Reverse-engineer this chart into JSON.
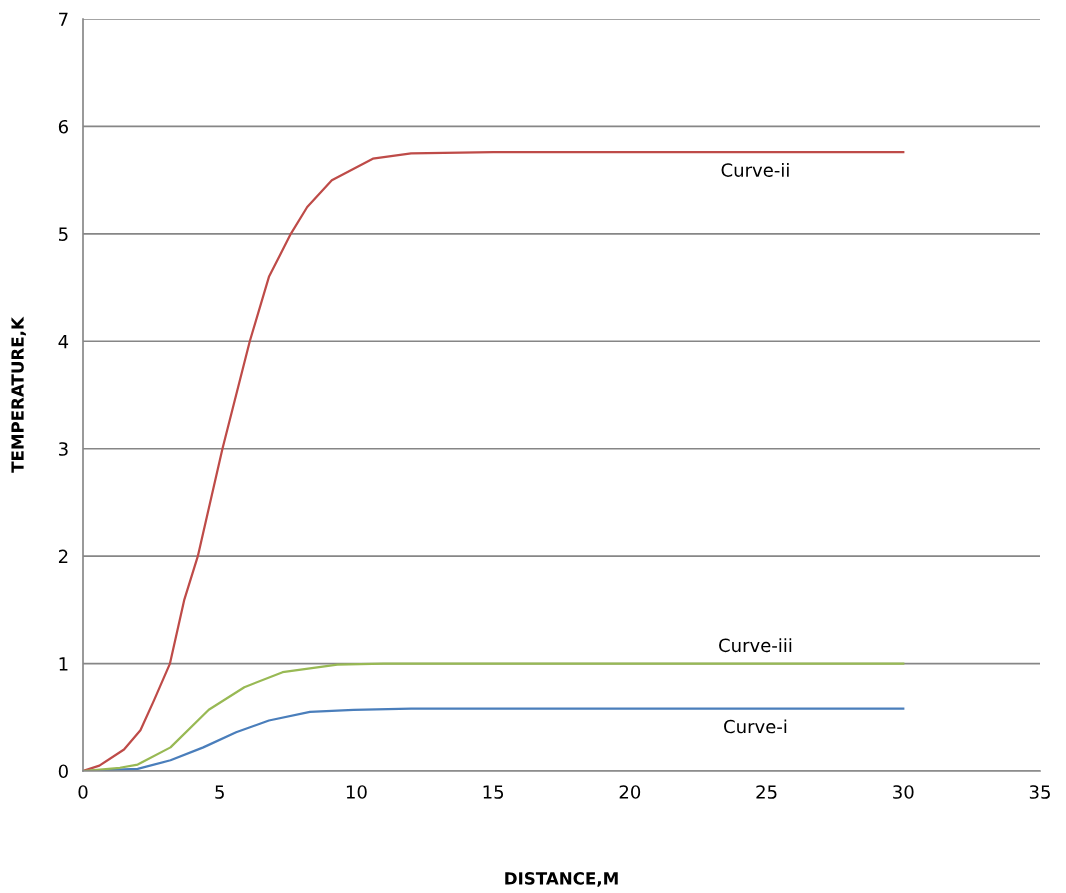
{
  "chart_data": {
    "type": "line",
    "xlabel": "DISTANCE,M",
    "ylabel": "TEMPERATURE,K",
    "xlim": [
      0,
      35
    ],
    "xticks": [
      0,
      5,
      10,
      15,
      20,
      25,
      30,
      35
    ],
    "ylim": [
      0,
      7
    ],
    "yticks": [
      0,
      1,
      2,
      3,
      4,
      5,
      6,
      7
    ],
    "grid": "y",
    "legend": false,
    "marker": "none",
    "line_style": "solid",
    "series": [
      {
        "name": "Curve-i",
        "color": "#4a7ebb",
        "x": [
          0,
          1,
          2,
          3.2,
          4.4,
          5.6,
          6.8,
          8.3,
          9.9,
          12,
          15,
          20,
          25,
          30
        ],
        "values": [
          0,
          0.01,
          0.02,
          0.1,
          0.22,
          0.36,
          0.47,
          0.55,
          0.57,
          0.58,
          0.58,
          0.58,
          0.58,
          0.58
        ]
      },
      {
        "name": "Curve-ii",
        "color": "#be4b48",
        "x": [
          0,
          0.6,
          1.5,
          2.1,
          2.6,
          3.18,
          3.7,
          4.2,
          5.1,
          6.1,
          6.8,
          7.6,
          8.2,
          9.1,
          10.6,
          12,
          15,
          20,
          25,
          30
        ],
        "values": [
          0,
          0.05,
          0.2,
          0.38,
          0.66,
          1,
          1.59,
          2,
          3,
          4,
          4.6,
          5,
          5.25,
          5.5,
          5.7,
          5.75,
          5.76,
          5.76,
          5.76,
          5.76
        ]
      },
      {
        "name": "Curve-iii",
        "color": "#98b954",
        "x": [
          0,
          1.35,
          2,
          3.2,
          4.6,
          5.9,
          7.3,
          9.3,
          11,
          15,
          20,
          25,
          30
        ],
        "values": [
          0,
          0.03,
          0.06,
          0.22,
          0.57,
          0.78,
          0.92,
          0.99,
          1,
          1,
          1,
          1,
          1
        ]
      }
    ]
  }
}
